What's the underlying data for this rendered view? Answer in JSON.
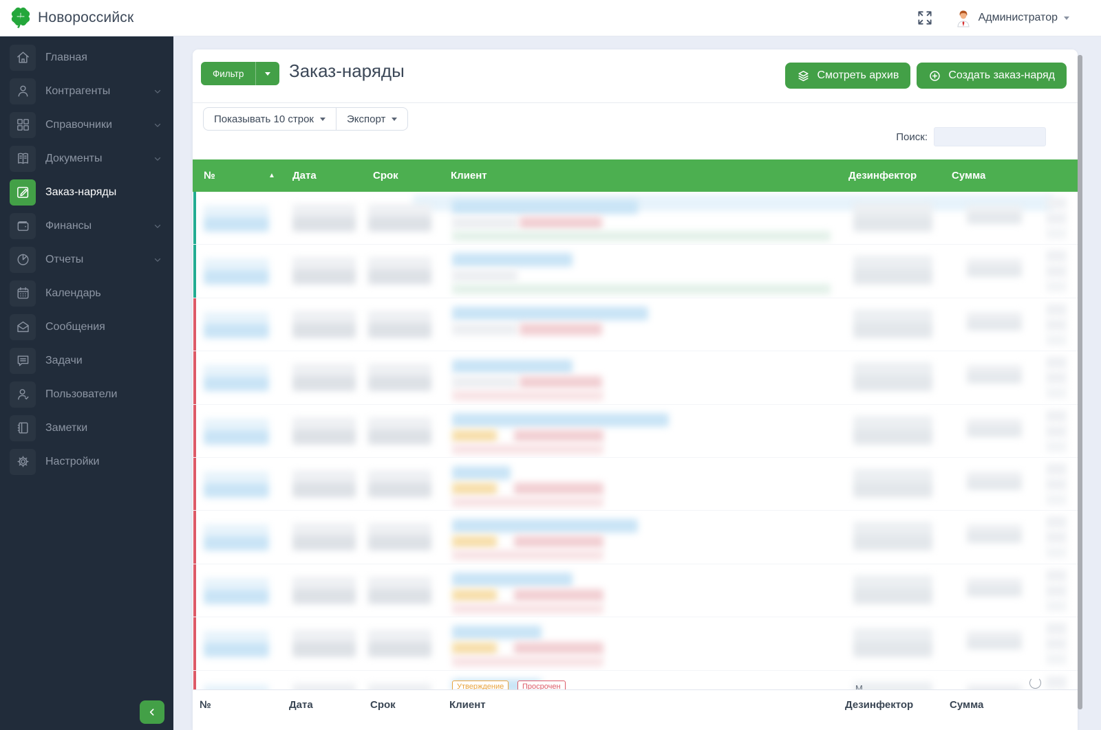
{
  "topbar": {
    "brand": "Новороссийск",
    "user_name": "Администратор"
  },
  "sidebar": {
    "items": [
      {
        "label": "Главная",
        "icon": "home",
        "chevron": false,
        "active": false
      },
      {
        "label": "Контрагенты",
        "icon": "contacts",
        "chevron": true,
        "active": false
      },
      {
        "label": "Справочники",
        "icon": "grid",
        "chevron": true,
        "active": false
      },
      {
        "label": "Документы",
        "icon": "documents",
        "chevron": true,
        "active": false
      },
      {
        "label": "Заказ-наряды",
        "icon": "work-order",
        "chevron": false,
        "active": true
      },
      {
        "label": "Финансы",
        "icon": "wallet",
        "chevron": true,
        "active": false
      },
      {
        "label": "Отчеты",
        "icon": "pie",
        "chevron": true,
        "active": false
      },
      {
        "label": "Календарь",
        "icon": "calendar",
        "chevron": false,
        "active": false
      },
      {
        "label": "Сообщения",
        "icon": "mail",
        "chevron": false,
        "active": false
      },
      {
        "label": "Задачи",
        "icon": "tasks",
        "chevron": false,
        "active": false
      },
      {
        "label": "Пользователи",
        "icon": "users",
        "chevron": false,
        "active": false
      },
      {
        "label": "Заметки",
        "icon": "notes",
        "chevron": false,
        "active": false
      },
      {
        "label": "Настройки",
        "icon": "settings",
        "chevron": false,
        "active": false
      }
    ]
  },
  "page": {
    "title": "Заказ-наряды",
    "filter_button": "Фильтр",
    "archive_button": "Смотреть архив",
    "create_button": "Создать заказ-наряд",
    "page_size_button": "Показывать 10 строк",
    "export_button": "Экспорт",
    "search_label": "Поиск:",
    "search_value": ""
  },
  "table": {
    "columns": [
      "№",
      "Дата",
      "Срок",
      "Клиент",
      "Дезинфектор",
      "Сумма"
    ],
    "sort_column": "№",
    "sort_direction": "asc",
    "rows": [
      {
        "accent": "teal",
        "top_band": true,
        "line1_w": 270,
        "line2": "grey-red",
        "bar": "green"
      },
      {
        "accent": "teal",
        "top_band": false,
        "line1_w": 175,
        "line2": "grey",
        "bar": "green"
      },
      {
        "accent": "red",
        "top_band": false,
        "line1_w": 285,
        "line2": "grey-red",
        "bar": "none"
      },
      {
        "accent": "red",
        "top_band": false,
        "line1_w": 175,
        "line2": "grey-red",
        "bar": "red"
      },
      {
        "accent": "red",
        "top_band": false,
        "line1_w": 315,
        "line2": "orange-red",
        "bar": "red"
      },
      {
        "accent": "red",
        "top_band": false,
        "line1_w": 85,
        "line2": "orange-red",
        "bar": "red"
      },
      {
        "accent": "red",
        "top_band": false,
        "line1_w": 270,
        "line2": "orange-red",
        "bar": "red"
      },
      {
        "accent": "red",
        "top_band": false,
        "line1_w": 175,
        "line2": "orange-red",
        "bar": "red"
      },
      {
        "accent": "red",
        "top_band": false,
        "line1_w": 130,
        "line2": "orange-red",
        "bar": "red"
      },
      {
        "accent": "red",
        "top_band": false,
        "line1_w": 130,
        "line2": "badges",
        "bar": "none"
      }
    ],
    "last_row": {
      "badges": [
        "Утверждение",
        "Просрочен"
      ],
      "partial_text": "М"
    },
    "footer_columns": [
      "№",
      "Дата",
      "Срок",
      "Клиент",
      "Дезинфектор",
      "Сумма"
    ]
  },
  "colors": {
    "accent_green": "#43a047",
    "header_green": "#4caf50",
    "logo_green": "#24a73b",
    "row_teal": "#23ac92",
    "row_red": "#dd5a68",
    "redact_blue": "#c9e4f6",
    "redact_blue_light": "#e7f3fb",
    "redact_grey": "#dde1e6",
    "redact_grey_light": "#edeff2",
    "redact_red": "#f2cfd3",
    "redact_red_light": "#f8e3e5",
    "redact_green": "#e3f1e9",
    "redact_orange": "#f7dfab",
    "badge_orange": "#e8a33d",
    "badge_red": "#dc5a67"
  }
}
